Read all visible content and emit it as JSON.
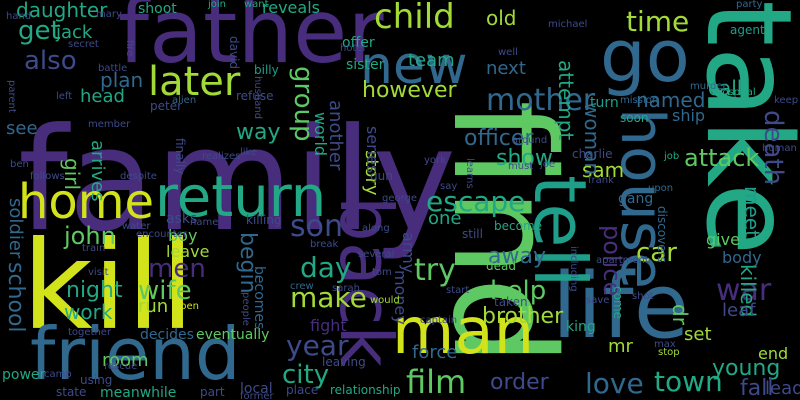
{
  "palette": {
    "background": "#000000",
    "yellow": "#d2e21b",
    "lime": "#a2da37",
    "green": "#5ec962",
    "teal": "#22a884",
    "cyan": "#1f9e89",
    "blue_teal": "#26828e",
    "steel_blue": "#31688e",
    "indigo": "#3e4a89",
    "purple": "#472d7b",
    "dark_purple": "#440154"
  },
  "words": [
    "family",
    "kill",
    "find",
    "take",
    "father",
    "friend",
    "life",
    "man",
    "back",
    "tell",
    "home",
    "return",
    "new",
    "go",
    "house",
    "later",
    "child",
    "mother",
    "time",
    "also",
    "get",
    "daughter",
    "jack",
    "plan",
    "head",
    "love",
    "town",
    "film",
    "city",
    "escape",
    "john",
    "men",
    "wife",
    "night",
    "work",
    "son",
    "try",
    "day",
    "make",
    "year",
    "help",
    "brother",
    "police",
    "car",
    "war",
    "killed",
    "meet",
    "death",
    "attack",
    "show",
    "sam",
    "however",
    "officer",
    "group",
    "way",
    "begin",
    "school",
    "soldier",
    "girl",
    "arrives",
    "story",
    "world",
    "another",
    "series",
    "old",
    "next",
    "team",
    "attempt",
    "named",
    "call",
    "woman",
    "ship",
    "give",
    "body",
    "leaf",
    "set",
    "dr",
    "mr",
    "king",
    "young",
    "fall",
    "end",
    "lead",
    "room",
    "force",
    "order",
    "money",
    "army",
    "one",
    "away",
    "boy",
    "leave",
    "run",
    "becomes",
    "fight",
    "see",
    "shoot",
    "reveals",
    "join",
    "want",
    "party",
    "agent",
    "murder",
    "mission",
    "turn",
    "soon",
    "michael",
    "well",
    "offer",
    "sister",
    "billy",
    "david",
    "husband",
    "peter",
    "alien",
    "refuse",
    "hotel",
    "hospital",
    "job",
    "charlie",
    "human",
    "frank",
    "upon",
    "gang",
    "discovers",
    "become",
    "dead",
    "taken",
    "come",
    "save",
    "shot",
    "stop",
    "max",
    "captain",
    "would",
    "crew",
    "sarah",
    "tom",
    "along",
    "several",
    "still",
    "start",
    "train",
    "visit",
    "asks",
    "name",
    "killing",
    "together",
    "decides",
    "eventually",
    "power",
    "camp",
    "using",
    "rescue",
    "state",
    "meanwhile",
    "part",
    "local",
    "former",
    "place",
    "leaving",
    "relationship",
    "return",
    "mary",
    "hand",
    "secret",
    "fire",
    "battle",
    "parent",
    "left",
    "member",
    "ben",
    "follows",
    "finally",
    "realizes",
    "like",
    "despite",
    "including",
    "open",
    "people",
    "around",
    "must",
    "learns",
    "say",
    "york",
    "keep",
    "apartment",
    "gun",
    "break",
    "george",
    "water",
    "encounter",
    "joe"
  ]
}
